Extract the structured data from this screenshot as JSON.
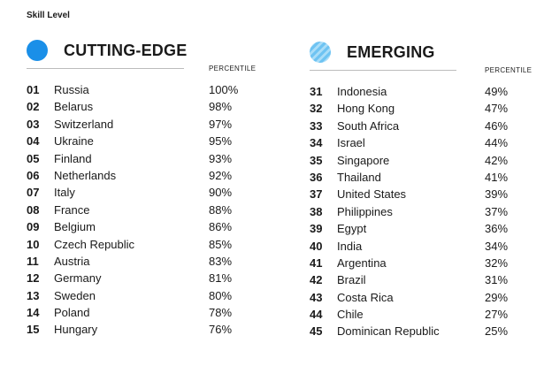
{
  "page": {
    "label": "Skill Level"
  },
  "left": {
    "title": "CUTTING-EDGE",
    "percentile_header": "PERCENTILE",
    "rows": [
      {
        "rank": "01",
        "country": "Russia",
        "pct": "100%"
      },
      {
        "rank": "02",
        "country": "Belarus",
        "pct": "98%"
      },
      {
        "rank": "03",
        "country": "Switzerland",
        "pct": "97%"
      },
      {
        "rank": "04",
        "country": "Ukraine",
        "pct": "95%"
      },
      {
        "rank": "05",
        "country": "Finland",
        "pct": "93%"
      },
      {
        "rank": "06",
        "country": "Netherlands",
        "pct": "92%"
      },
      {
        "rank": "07",
        "country": "Italy",
        "pct": "90%"
      },
      {
        "rank": "08",
        "country": "France",
        "pct": "88%"
      },
      {
        "rank": "09",
        "country": "Belgium",
        "pct": "86%"
      },
      {
        "rank": "10",
        "country": "Czech Republic",
        "pct": "85%"
      },
      {
        "rank": "11",
        "country": "Austria",
        "pct": "83%"
      },
      {
        "rank": "12",
        "country": "Germany",
        "pct": "81%"
      },
      {
        "rank": "13",
        "country": "Sweden",
        "pct": "80%"
      },
      {
        "rank": "14",
        "country": "Poland",
        "pct": "78%"
      },
      {
        "rank": "15",
        "country": "Hungary",
        "pct": "76%"
      }
    ]
  },
  "right": {
    "title": "EMERGING",
    "percentile_header": "PERCENTILE",
    "rows": [
      {
        "rank": "31",
        "country": "Indonesia",
        "pct": "49%"
      },
      {
        "rank": "32",
        "country": "Hong Kong",
        "pct": "47%"
      },
      {
        "rank": "33",
        "country": "South Africa",
        "pct": "46%"
      },
      {
        "rank": "34",
        "country": "Israel",
        "pct": "44%"
      },
      {
        "rank": "35",
        "country": "Singapore",
        "pct": "42%"
      },
      {
        "rank": "36",
        "country": "Thailand",
        "pct": "41%"
      },
      {
        "rank": "37",
        "country": "United States",
        "pct": "39%"
      },
      {
        "rank": "38",
        "country": "Philippines",
        "pct": "37%"
      },
      {
        "rank": "39",
        "country": "Egypt",
        "pct": "36%"
      },
      {
        "rank": "40",
        "country": "India",
        "pct": "34%"
      },
      {
        "rank": "41",
        "country": "Argentina",
        "pct": "32%"
      },
      {
        "rank": "42",
        "country": "Brazil",
        "pct": "31%"
      },
      {
        "rank": "43",
        "country": "Costa Rica",
        "pct": "29%"
      },
      {
        "rank": "44",
        "country": "Chile",
        "pct": "27%"
      },
      {
        "rank": "45",
        "country": "Dominican Republic",
        "pct": "25%"
      }
    ]
  },
  "colors": {
    "cutting_edge": "#1a8fe8",
    "emerging": "#6ec3f2"
  },
  "icons": {
    "cutting_edge": "solid-circle-icon",
    "emerging": "hatched-circle-icon"
  }
}
